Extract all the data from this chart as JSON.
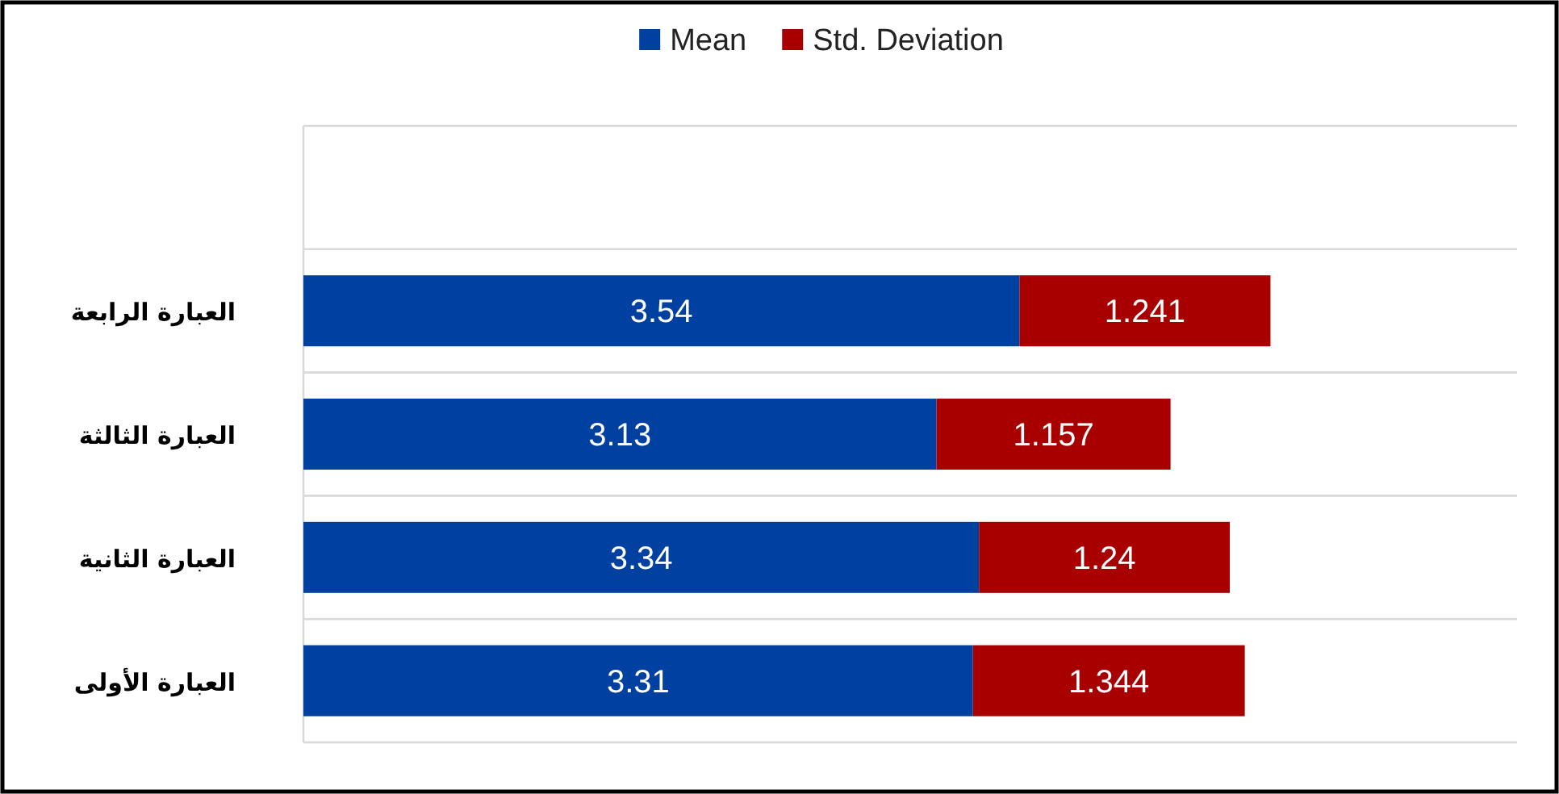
{
  "chart_data": {
    "type": "bar",
    "orientation": "horizontal",
    "stacked": true,
    "categories": [
      null,
      "العبارة الرابعة",
      "العبارة الثالثة",
      "العبارة الثانية",
      "العبارة الأولى"
    ],
    "series": [
      {
        "name": "Mean",
        "color": "#0040a0",
        "values": [
          null,
          3.54,
          3.13,
          3.34,
          3.31
        ]
      },
      {
        "name": "Std. Deviation",
        "color": "#a80000",
        "values": [
          null,
          1.241,
          1.157,
          1.24,
          1.344
        ]
      }
    ],
    "xlim": [
      0,
      6
    ],
    "grid": "y",
    "legend": "top",
    "data_labels": true
  }
}
